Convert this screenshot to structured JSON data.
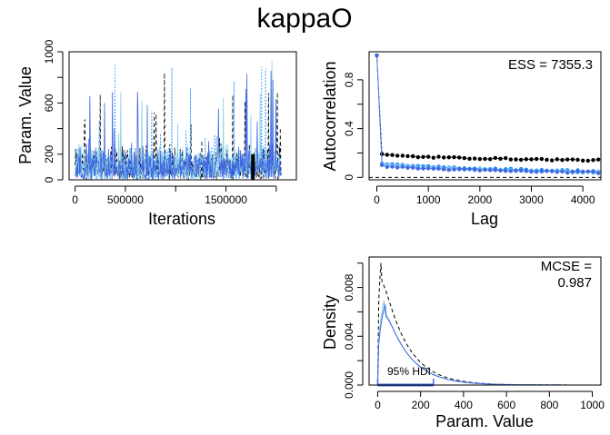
{
  "figure": {
    "title": "kappaO"
  },
  "chart_data": [
    {
      "type": "line",
      "panel": "trace",
      "xlabel": "Iterations",
      "ylabel": "Param. Value",
      "xlim": [
        -60000,
        2200000
      ],
      "ylim": [
        0,
        1000
      ],
      "xticks": [
        0,
        500000,
        1500000
      ],
      "xticks_unlabeled": [
        1000000,
        2000000
      ],
      "yticks": [
        0,
        200,
        600,
        1000
      ],
      "yticks_unlabeled": [
        400,
        800
      ],
      "series": [
        {
          "color": "#000000",
          "style": "dashed",
          "typical_max": 300,
          "spike_max": 900
        },
        {
          "color": "#1e90ff",
          "style": "dotted",
          "typical_max": 300,
          "spike_max": 960
        },
        {
          "color": "#87ceeb",
          "style": "solid",
          "typical_max": 300,
          "spike_max": 960
        },
        {
          "color": "#4169e1",
          "style": "solid",
          "typical_max": 300,
          "spike_max": 860
        }
      ]
    },
    {
      "type": "scatter",
      "panel": "autocorrelation",
      "xlabel": "Lag",
      "ylabel": "Autocorrelation",
      "xlim": [
        -150,
        4350
      ],
      "ylim": [
        -0.02,
        1.03
      ],
      "xticks": [
        0,
        1000,
        2000,
        3000,
        4000
      ],
      "yticks": [
        0.0,
        0.4,
        0.8
      ],
      "yticks_unlabeled": [
        0.2,
        0.6
      ],
      "annotation": "ESS = 7355.3",
      "reference_line_y": 0,
      "series": [
        {
          "color": "#000000",
          "lag0": 1.0,
          "lag_start": 0.19,
          "lag_end": 0.14
        },
        {
          "color": "#1e90ff",
          "lag0": 1.0,
          "lag_start": 0.12,
          "lag_end": 0.05
        },
        {
          "color": "#87ceeb",
          "lag0": 1.0,
          "lag_start": 0.11,
          "lag_end": 0.04
        },
        {
          "color": "#4169e1",
          "lag0": 1.0,
          "lag_start": 0.1,
          "lag_end": 0.04
        }
      ]
    },
    {
      "type": "line",
      "panel": "density",
      "xlabel": "Param. Value",
      "ylabel": "Density",
      "xlim": [
        -40,
        1040
      ],
      "ylim": [
        0,
        0.0105
      ],
      "xticks": [
        0,
        200,
        400,
        600,
        800,
        1000
      ],
      "yticks": [
        0.0,
        0.004,
        0.008
      ],
      "yticks_labels": [
        "0.000",
        "0.004",
        "0.008"
      ],
      "yticks_unlabeled": [
        0.002,
        0.006,
        0.01
      ],
      "annotation_line1": "MCSE =",
      "annotation_line2": "0.987",
      "hdi_label": "95% HDI",
      "hdi": [
        0,
        260
      ],
      "series": [
        {
          "color": "#000000",
          "style": "dashed",
          "peak_x": 15,
          "peak_y": 0.01
        },
        {
          "color": "#1e90ff",
          "style": "dotted",
          "peak_x": 30,
          "peak_y": 0.0069
        },
        {
          "color": "#87ceeb",
          "style": "solid",
          "peak_x": 30,
          "peak_y": 0.0069
        },
        {
          "color": "#4169e1",
          "style": "solid",
          "peak_x": 35,
          "peak_y": 0.0066
        }
      ]
    }
  ]
}
